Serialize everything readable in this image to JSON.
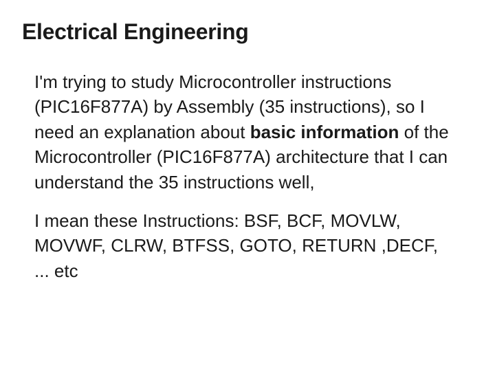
{
  "heading": "Electrical Engineering",
  "paragraph1_part1": "I'm trying to study Microcontroller instructions (PIC16F877A) by Assembly (35 instructions), so I need an explanation about ",
  "paragraph1_bold": "basic information",
  "paragraph1_part2": " of the Microcontroller (PIC16F877A) architecture that I can understand the 35 instructions well,",
  "paragraph2": "I mean these Instructions: BSF, BCF, MOVLW, MOVWF, CLRW, BTFSS, GOTO, RETURN ,DECF, ... etc",
  "styles": {
    "heading_fontsize": 32,
    "heading_fontweight": 700,
    "body_fontsize": 26,
    "body_lineheight": 1.4,
    "text_color": "#1a1a1a",
    "background_color": "#ffffff",
    "bold_fontweight": 700
  }
}
